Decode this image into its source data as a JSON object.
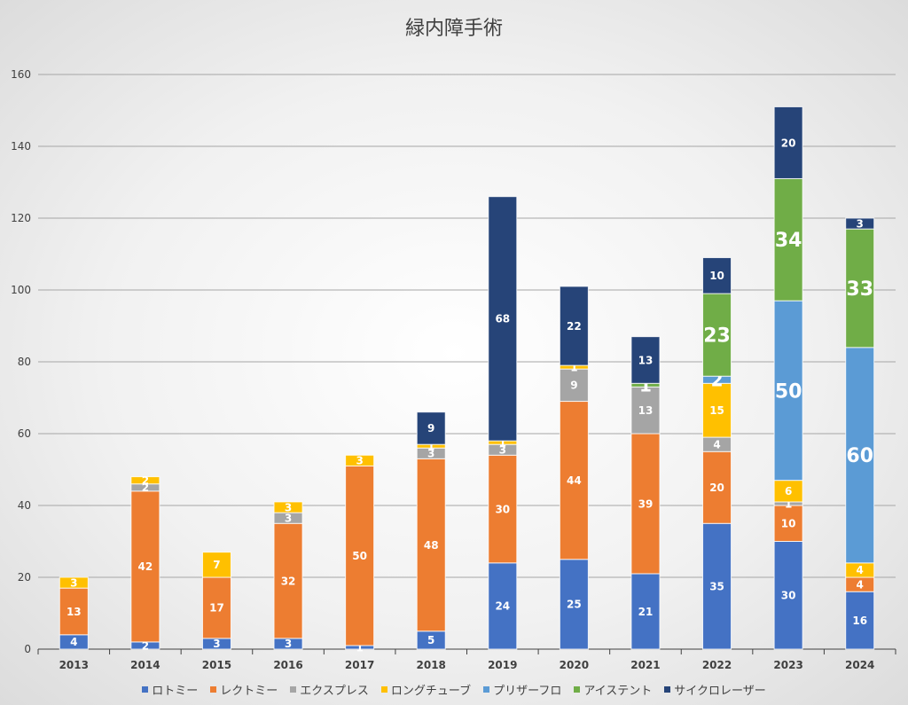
{
  "chart_data": {
    "type": "bar",
    "stacked": true,
    "title": "緑内障手術",
    "xlabel": "",
    "ylabel": "",
    "ylim": [
      0,
      160
    ],
    "yticks": [
      0,
      20,
      40,
      60,
      80,
      100,
      120,
      140,
      160
    ],
    "grid": true,
    "legend_position": "bottom",
    "categories": [
      "2013",
      "2014",
      "2015",
      "2016",
      "2017",
      "2018",
      "2019",
      "2020",
      "2021",
      "2022",
      "2023",
      "2024"
    ],
    "series": [
      {
        "name": "ロトミー",
        "color": "#4472C4",
        "values": [
          4,
          2,
          3,
          3,
          1,
          5,
          24,
          25,
          21,
          35,
          30,
          16
        ]
      },
      {
        "name": "レクトミー",
        "color": "#ED7D31",
        "values": [
          13,
          42,
          17,
          32,
          50,
          48,
          30,
          44,
          39,
          20,
          10,
          4
        ]
      },
      {
        "name": "エクスプレス",
        "color": "#A5A5A5",
        "values": [
          0,
          2,
          0,
          3,
          0,
          3,
          3,
          9,
          13,
          4,
          1,
          0
        ]
      },
      {
        "name": "ロングチューブ",
        "color": "#FFC000",
        "values": [
          3,
          2,
          7,
          3,
          3,
          1,
          1,
          1,
          0,
          15,
          6,
          4
        ]
      },
      {
        "name": "プリザーフロ",
        "color": "#5B9BD5",
        "values": [
          0,
          0,
          0,
          0,
          0,
          0,
          0,
          0,
          0,
          2,
          50,
          60
        ]
      },
      {
        "name": "アイステント",
        "color": "#70AD47",
        "values": [
          0,
          0,
          0,
          0,
          0,
          0,
          0,
          0,
          1,
          23,
          34,
          33
        ]
      },
      {
        "name": "サイクロレーザー",
        "color": "#264478",
        "values": [
          0,
          0,
          0,
          0,
          0,
          9,
          68,
          22,
          13,
          10,
          20,
          3
        ]
      }
    ]
  }
}
